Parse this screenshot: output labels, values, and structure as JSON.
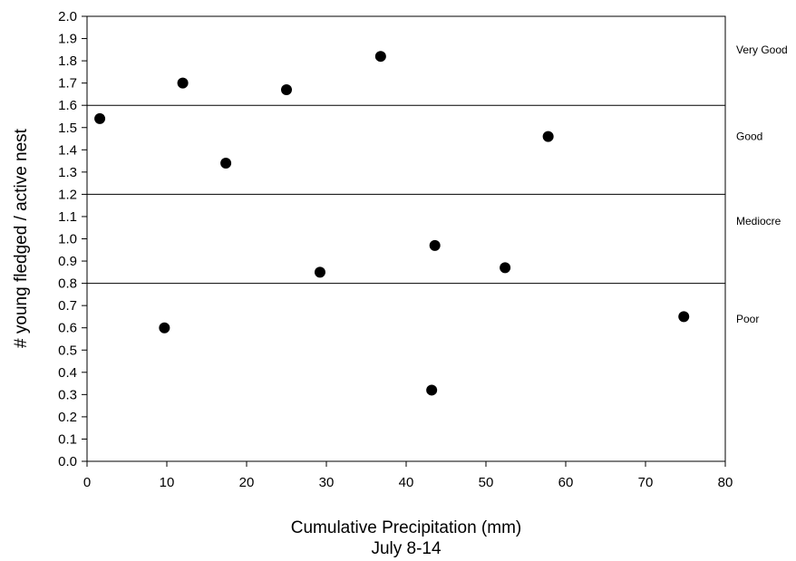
{
  "chart_data": {
    "type": "scatter",
    "title": "",
    "xlabel": "Cumulative Precipitation (mm)",
    "xlabel2": "July 8-14",
    "ylabel": "# young fledged / active nest",
    "xlim": [
      0,
      80
    ],
    "ylim": [
      0,
      2.0
    ],
    "x_ticks": [
      0,
      10,
      20,
      30,
      40,
      50,
      60,
      70,
      80
    ],
    "y_ticks": [
      0.0,
      0.1,
      0.2,
      0.3,
      0.4,
      0.5,
      0.6,
      0.7,
      0.8,
      0.9,
      1.0,
      1.1,
      1.2,
      1.3,
      1.4,
      1.5,
      1.6,
      1.7,
      1.8,
      1.9,
      2.0
    ],
    "grid": false,
    "marker_color": "#000000",
    "points": [
      {
        "x": 1.6,
        "y": 1.54
      },
      {
        "x": 9.7,
        "y": 0.6
      },
      {
        "x": 12.0,
        "y": 1.7
      },
      {
        "x": 17.4,
        "y": 1.34
      },
      {
        "x": 25.0,
        "y": 1.67
      },
      {
        "x": 29.2,
        "y": 0.85
      },
      {
        "x": 36.8,
        "y": 1.82
      },
      {
        "x": 43.2,
        "y": 0.32
      },
      {
        "x": 43.6,
        "y": 0.97
      },
      {
        "x": 52.4,
        "y": 0.87
      },
      {
        "x": 57.8,
        "y": 1.46
      },
      {
        "x": 74.8,
        "y": 0.65
      }
    ],
    "threshold_lines": [
      0.8,
      1.2,
      1.6
    ],
    "band_labels": [
      {
        "text": "Very Good",
        "y": 1.85
      },
      {
        "text": "Good",
        "y": 1.46
      },
      {
        "text": "Mediocre",
        "y": 1.08
      },
      {
        "text": "Poor",
        "y": 0.64
      }
    ]
  }
}
